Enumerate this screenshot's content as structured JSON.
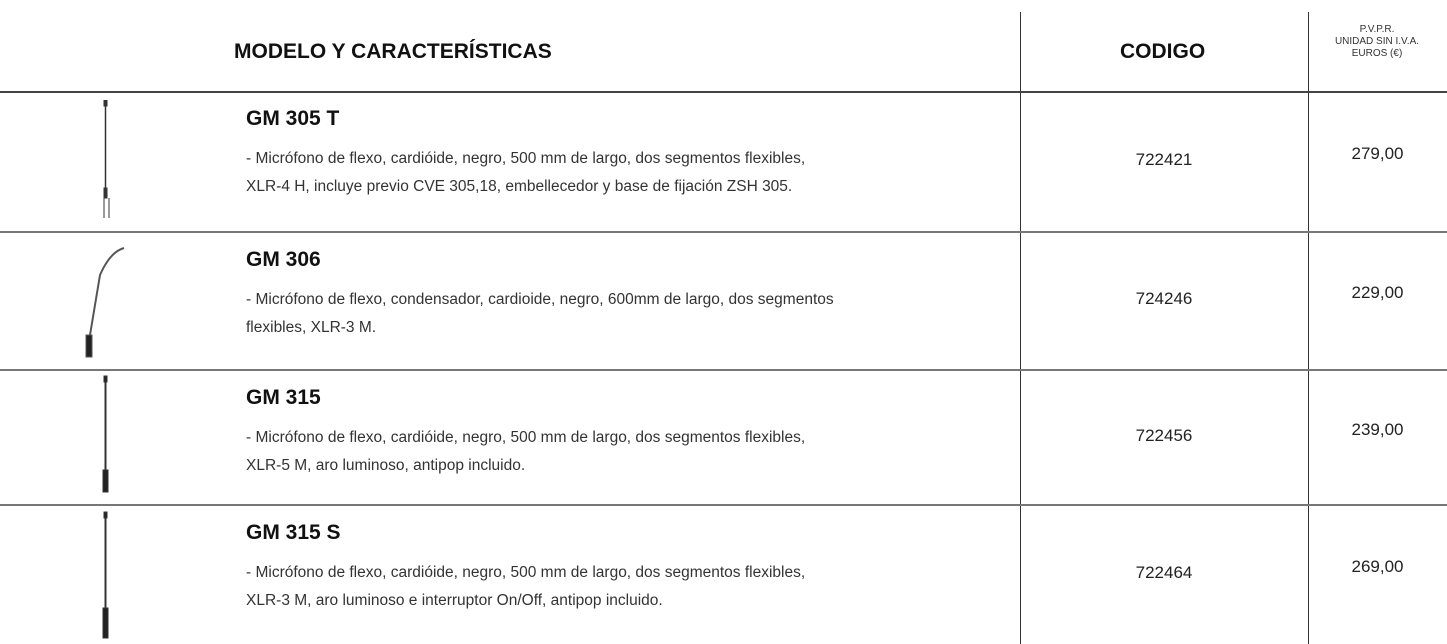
{
  "header": {
    "model": "MODELO Y CARACTERÍSTICAS",
    "code": "CODIGO",
    "price": [
      "P.V.P.R.",
      "UNIDAD SIN I.V.A.",
      "EUROS (€)"
    ]
  },
  "rows": [
    {
      "name": "GM 305 T",
      "description": [
        "- Micrófono de flexo, cardióide, negro, 500 mm de largo, dos segmentos flexibles,",
        "XLR-4 H, incluye previo CVE 305,18, embellecedor y base de fijación ZSH 305."
      ],
      "code": "722421",
      "price": "279,00"
    },
    {
      "name": "GM 306",
      "description": [
        "- Micrófono de flexo, condensador, cardioide, negro, 600mm de largo, dos segmentos",
        "flexibles, XLR-3 M."
      ],
      "code": "724246",
      "price": "229,00"
    },
    {
      "name": "GM 315",
      "description": [
        "- Micrófono de flexo, cardióide, negro, 500 mm de largo, dos segmentos flexibles,",
        "XLR-5 M, aro luminoso, antipop incluido."
      ],
      "code": "722456",
      "price": "239,00"
    },
    {
      "name": "GM 315 S",
      "description": [
        "- Micrófono de flexo, cardióide, negro, 500 mm de largo, dos segmentos flexibles,",
        "XLR-3 M, aro luminoso e interruptor On/Off, antipop incluido."
      ],
      "code": "722464",
      "price": "269,00"
    }
  ]
}
